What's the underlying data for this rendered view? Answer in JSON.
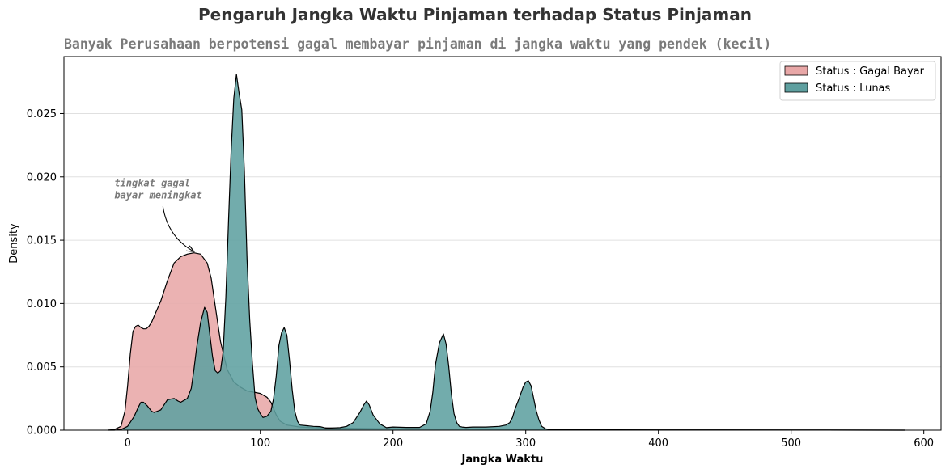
{
  "chart_data": {
    "type": "area",
    "subtype": "kde-density",
    "title": "Pengaruh Jangka Waktu Pinjaman terhadap Status Pinjaman",
    "subtitle": "Banyak Perusahaan berpotensi gagal membayar pinjaman di jangka waktu yang pendek (kecil)",
    "xlabel": "Jangka Waktu",
    "ylabel": "Density",
    "xlim": [
      -48,
      613
    ],
    "ylim": [
      0,
      0.0295
    ],
    "xticks": [
      0,
      100,
      200,
      300,
      400,
      500,
      600
    ],
    "xtick_labels": [
      "0",
      "100",
      "200",
      "300",
      "400",
      "500",
      "600"
    ],
    "yticks": [
      0.0,
      0.005,
      0.01,
      0.015,
      0.02,
      0.025
    ],
    "ytick_labels": [
      "0.000",
      "0.005",
      "0.010",
      "0.015",
      "0.020",
      "0.025"
    ],
    "grid": "horizontal",
    "legend_position": "top-right",
    "series": [
      {
        "name": "Status : Gagal Bayar",
        "color": "#e8a7a7",
        "x": [
          -15,
          -10,
          -5,
          -2,
          0,
          2,
          4,
          6,
          8,
          10,
          12,
          14,
          16,
          18,
          20,
          25,
          30,
          35,
          40,
          45,
          50,
          55,
          60,
          63,
          66,
          70,
          75,
          80,
          85,
          90,
          95,
          100,
          105,
          108,
          110,
          112,
          115,
          120,
          130,
          140,
          150,
          170,
          200,
          250,
          300,
          350,
          400,
          500,
          586
        ],
        "y": [
          0,
          5e-05,
          0.0003,
          0.0015,
          0.0035,
          0.006,
          0.0078,
          0.0082,
          0.0083,
          0.0081,
          0.008,
          0.008,
          0.0082,
          0.0085,
          0.009,
          0.0102,
          0.0118,
          0.0132,
          0.0137,
          0.0139,
          0.014,
          0.0139,
          0.0132,
          0.012,
          0.0098,
          0.007,
          0.0048,
          0.0038,
          0.0034,
          0.0031,
          0.003,
          0.0029,
          0.0026,
          0.0022,
          0.0017,
          0.0012,
          0.0007,
          0.0004,
          0.00025,
          0.0002,
          0.00018,
          0.00015,
          0.0001,
          8e-05,
          5e-05,
          3e-05,
          2e-05,
          1e-05,
          0
        ]
      },
      {
        "name": "Status : Lunas",
        "color": "#5fa0a0",
        "x": [
          -15,
          -10,
          -5,
          0,
          5,
          8,
          10,
          12,
          15,
          18,
          20,
          25,
          30,
          35,
          38,
          40,
          45,
          48,
          50,
          52,
          55,
          58,
          60,
          62,
          64,
          66,
          68,
          70,
          72,
          74,
          76,
          78,
          80,
          82,
          84,
          86,
          88,
          90,
          92,
          94,
          96,
          98,
          100,
          102,
          105,
          108,
          110,
          112,
          114,
          116,
          118,
          120,
          122,
          124,
          126,
          128,
          130,
          135,
          140,
          145,
          150,
          160,
          165,
          170,
          175,
          178,
          180,
          182,
          185,
          190,
          195,
          200,
          210,
          220,
          225,
          228,
          230,
          232,
          235,
          238,
          240,
          242,
          244,
          246,
          248,
          250,
          252,
          255,
          260,
          270,
          280,
          285,
          288,
          290,
          292,
          295,
          298,
          300,
          302,
          304,
          306,
          308,
          310,
          312,
          315,
          320,
          350,
          400,
          500,
          586
        ],
        "y": [
          0,
          0,
          5e-05,
          0.0003,
          0.0011,
          0.0018,
          0.0022,
          0.0022,
          0.0019,
          0.0015,
          0.0014,
          0.0016,
          0.0024,
          0.0025,
          0.0023,
          0.0022,
          0.0025,
          0.0033,
          0.0048,
          0.0065,
          0.0085,
          0.0097,
          0.0093,
          0.0075,
          0.0058,
          0.0047,
          0.0045,
          0.0047,
          0.0062,
          0.0105,
          0.0165,
          0.022,
          0.0262,
          0.0281,
          0.0266,
          0.0253,
          0.0205,
          0.0135,
          0.0087,
          0.0053,
          0.0026,
          0.0017,
          0.0013,
          0.001,
          0.0011,
          0.0015,
          0.0025,
          0.0043,
          0.0067,
          0.0077,
          0.0081,
          0.0075,
          0.0055,
          0.0032,
          0.0015,
          0.0007,
          0.0004,
          0.00035,
          0.0003,
          0.00028,
          0.00015,
          0.0002,
          0.0003,
          0.0006,
          0.0014,
          0.002,
          0.0023,
          0.002,
          0.0012,
          0.0005,
          0.0002,
          0.00025,
          0.00022,
          0.00022,
          0.0005,
          0.0015,
          0.003,
          0.0052,
          0.0069,
          0.0076,
          0.0068,
          0.005,
          0.0028,
          0.0013,
          0.0006,
          0.0003,
          0.00025,
          0.00022,
          0.00025,
          0.00025,
          0.0003,
          0.0004,
          0.0006,
          0.001,
          0.0017,
          0.0025,
          0.0034,
          0.0038,
          0.0039,
          0.0035,
          0.0025,
          0.0015,
          0.0008,
          0.0003,
          0.0001,
          2e-05,
          1e-05,
          1e-05,
          1e-05,
          0
        ]
      }
    ],
    "annotation": {
      "lines": [
        "tingkat gagal",
        "bayar meningkat"
      ],
      "text_at": [
        -10,
        0.0183
      ],
      "arrow_to": [
        50,
        0.0141
      ]
    }
  }
}
